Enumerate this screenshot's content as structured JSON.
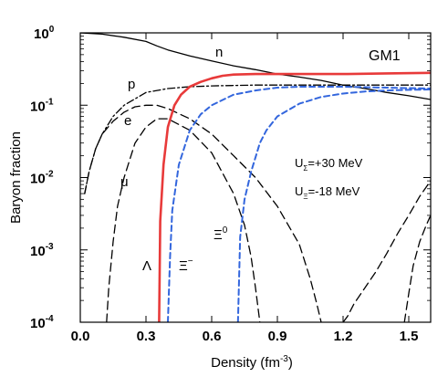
{
  "chart_data": {
    "type": "line",
    "title": "",
    "xlabel": "Density (fm",
    "xlabel_exp": "-3",
    "xlabel_close": ")",
    "ylabel": "Baryon fraction",
    "xlim": [
      0.0,
      1.6
    ],
    "ylim": [
      0.0001,
      1
    ],
    "y_scale": "log",
    "grid": false,
    "x_ticks": [
      {
        "value": 0.0,
        "label": "0.0"
      },
      {
        "value": 0.3,
        "label": "0.3"
      },
      {
        "value": 0.6,
        "label": "0.6"
      },
      {
        "value": 0.9,
        "label": "0.9"
      },
      {
        "value": 1.2,
        "label": "1.2"
      },
      {
        "value": 1.5,
        "label": "1.5"
      }
    ],
    "y_ticks": [
      {
        "value": 1,
        "base": "10",
        "exp": "0"
      },
      {
        "value": 0.1,
        "base": "10",
        "exp": "-1"
      },
      {
        "value": 0.01,
        "base": "10",
        "exp": "-2"
      },
      {
        "value": 0.001,
        "base": "10",
        "exp": "-3"
      },
      {
        "value": 0.0001,
        "base": "10",
        "exp": "-4"
      }
    ],
    "model_label": "GM1",
    "annotations": [
      {
        "id": "u-sigma",
        "base": "U",
        "sub": "Σ",
        "text": "=+30 MeV"
      },
      {
        "id": "u-xi",
        "base": "U",
        "sub": "Ξ",
        "text": "=-18 MeV"
      }
    ],
    "series": [
      {
        "name": "n",
        "label": "n",
        "color": "#000000",
        "style": "solid",
        "x": [
          0.0,
          0.1,
          0.2,
          0.3,
          0.35,
          0.4,
          0.5,
          0.6,
          0.7,
          0.8,
          0.9,
          1.0,
          1.1,
          1.2,
          1.3,
          1.4,
          1.5,
          1.6
        ],
        "y": [
          1.0,
          0.96,
          0.87,
          0.76,
          0.66,
          0.58,
          0.48,
          0.41,
          0.35,
          0.31,
          0.27,
          0.245,
          0.22,
          0.19,
          0.17,
          0.15,
          0.135,
          0.12
        ]
      },
      {
        "name": "p",
        "label": "p",
        "color": "#000000",
        "style": "dashdot",
        "x": [
          0.02,
          0.04,
          0.07,
          0.1,
          0.15,
          0.2,
          0.3,
          0.4,
          0.5,
          0.6,
          0.8,
          1.0,
          1.2,
          1.4,
          1.6
        ],
        "y": [
          0.006,
          0.012,
          0.025,
          0.04,
          0.07,
          0.1,
          0.15,
          0.17,
          0.18,
          0.185,
          0.19,
          0.19,
          0.19,
          0.19,
          0.19
        ]
      },
      {
        "name": "e",
        "label": "e",
        "color": "#000000",
        "style": "longdash",
        "x": [
          0.02,
          0.04,
          0.07,
          0.1,
          0.15,
          0.2,
          0.25,
          0.3,
          0.35,
          0.4,
          0.5,
          0.6,
          0.7,
          0.8,
          0.9,
          1.0,
          1.05,
          1.08,
          1.1
        ],
        "y": [
          0.006,
          0.012,
          0.025,
          0.04,
          0.06,
          0.08,
          0.095,
          0.1,
          0.1,
          0.09,
          0.065,
          0.04,
          0.02,
          0.01,
          0.004,
          0.0012,
          0.0004,
          0.00018,
          0.0001
        ]
      },
      {
        "name": "μ",
        "label": "μ",
        "color": "#000000",
        "style": "longdash",
        "x": [
          0.12,
          0.13,
          0.15,
          0.17,
          0.2,
          0.25,
          0.3,
          0.35,
          0.4,
          0.5,
          0.6,
          0.7,
          0.75,
          0.78,
          0.8,
          0.82
        ],
        "y": [
          0.0001,
          0.0003,
          0.0013,
          0.004,
          0.01,
          0.03,
          0.05,
          0.065,
          0.065,
          0.045,
          0.022,
          0.006,
          0.0022,
          0.0008,
          0.0003,
          0.0001
        ]
      },
      {
        "name": "Λ",
        "label": "Λ",
        "color": "#e83a3a",
        "style": "solid",
        "x": [
          0.36,
          0.365,
          0.38,
          0.4,
          0.43,
          0.46,
          0.5,
          0.55,
          0.6,
          0.65,
          0.7,
          0.8,
          0.9,
          1.0,
          1.2,
          1.4,
          1.6
        ],
        "y": [
          0.0001,
          0.0025,
          0.015,
          0.05,
          0.1,
          0.14,
          0.18,
          0.21,
          0.235,
          0.255,
          0.265,
          0.27,
          0.27,
          0.27,
          0.27,
          0.275,
          0.28
        ]
      },
      {
        "name": "Ξ-",
        "label": "Ξ",
        "label_sup": "−",
        "color": "#3366dd",
        "style": "dashed",
        "x": [
          0.4,
          0.41,
          0.42,
          0.45,
          0.5,
          0.55,
          0.6,
          0.7,
          0.8,
          0.9,
          1.0,
          1.1,
          1.2,
          1.4,
          1.6
        ],
        "y": [
          0.0001,
          0.0008,
          0.0035,
          0.015,
          0.045,
          0.075,
          0.1,
          0.14,
          0.16,
          0.175,
          0.18,
          0.18,
          0.18,
          0.175,
          0.17
        ]
      },
      {
        "name": "Ξ0",
        "label": "Ξ",
        "label_sup": "0",
        "color": "#3366dd",
        "style": "dashed",
        "x": [
          0.72,
          0.73,
          0.75,
          0.78,
          0.82,
          0.85,
          0.9,
          1.0,
          1.1,
          1.2,
          1.3,
          1.4,
          1.5,
          1.6
        ],
        "y": [
          0.0001,
          0.0015,
          0.005,
          0.012,
          0.03,
          0.045,
          0.07,
          0.105,
          0.13,
          0.145,
          0.155,
          0.16,
          0.163,
          0.165
        ]
      },
      {
        "name": "μ-rise",
        "label": "",
        "color": "#000000",
        "style": "longdash",
        "x": [
          1.2,
          1.22,
          1.25,
          1.3,
          1.35,
          1.4,
          1.45,
          1.5,
          1.55,
          1.6
        ],
        "y": [
          0.0001,
          0.00012,
          0.00018,
          0.0003,
          0.0005,
          0.0009,
          0.0017,
          0.003,
          0.0055,
          0.009
        ]
      },
      {
        "name": "e-rise",
        "label": "",
        "color": "#000000",
        "style": "longdash",
        "x": [
          1.48,
          1.5,
          1.52,
          1.55,
          1.58,
          1.6
        ],
        "y": [
          0.0001,
          0.00025,
          0.0006,
          0.0013,
          0.0022,
          0.003
        ]
      }
    ]
  }
}
